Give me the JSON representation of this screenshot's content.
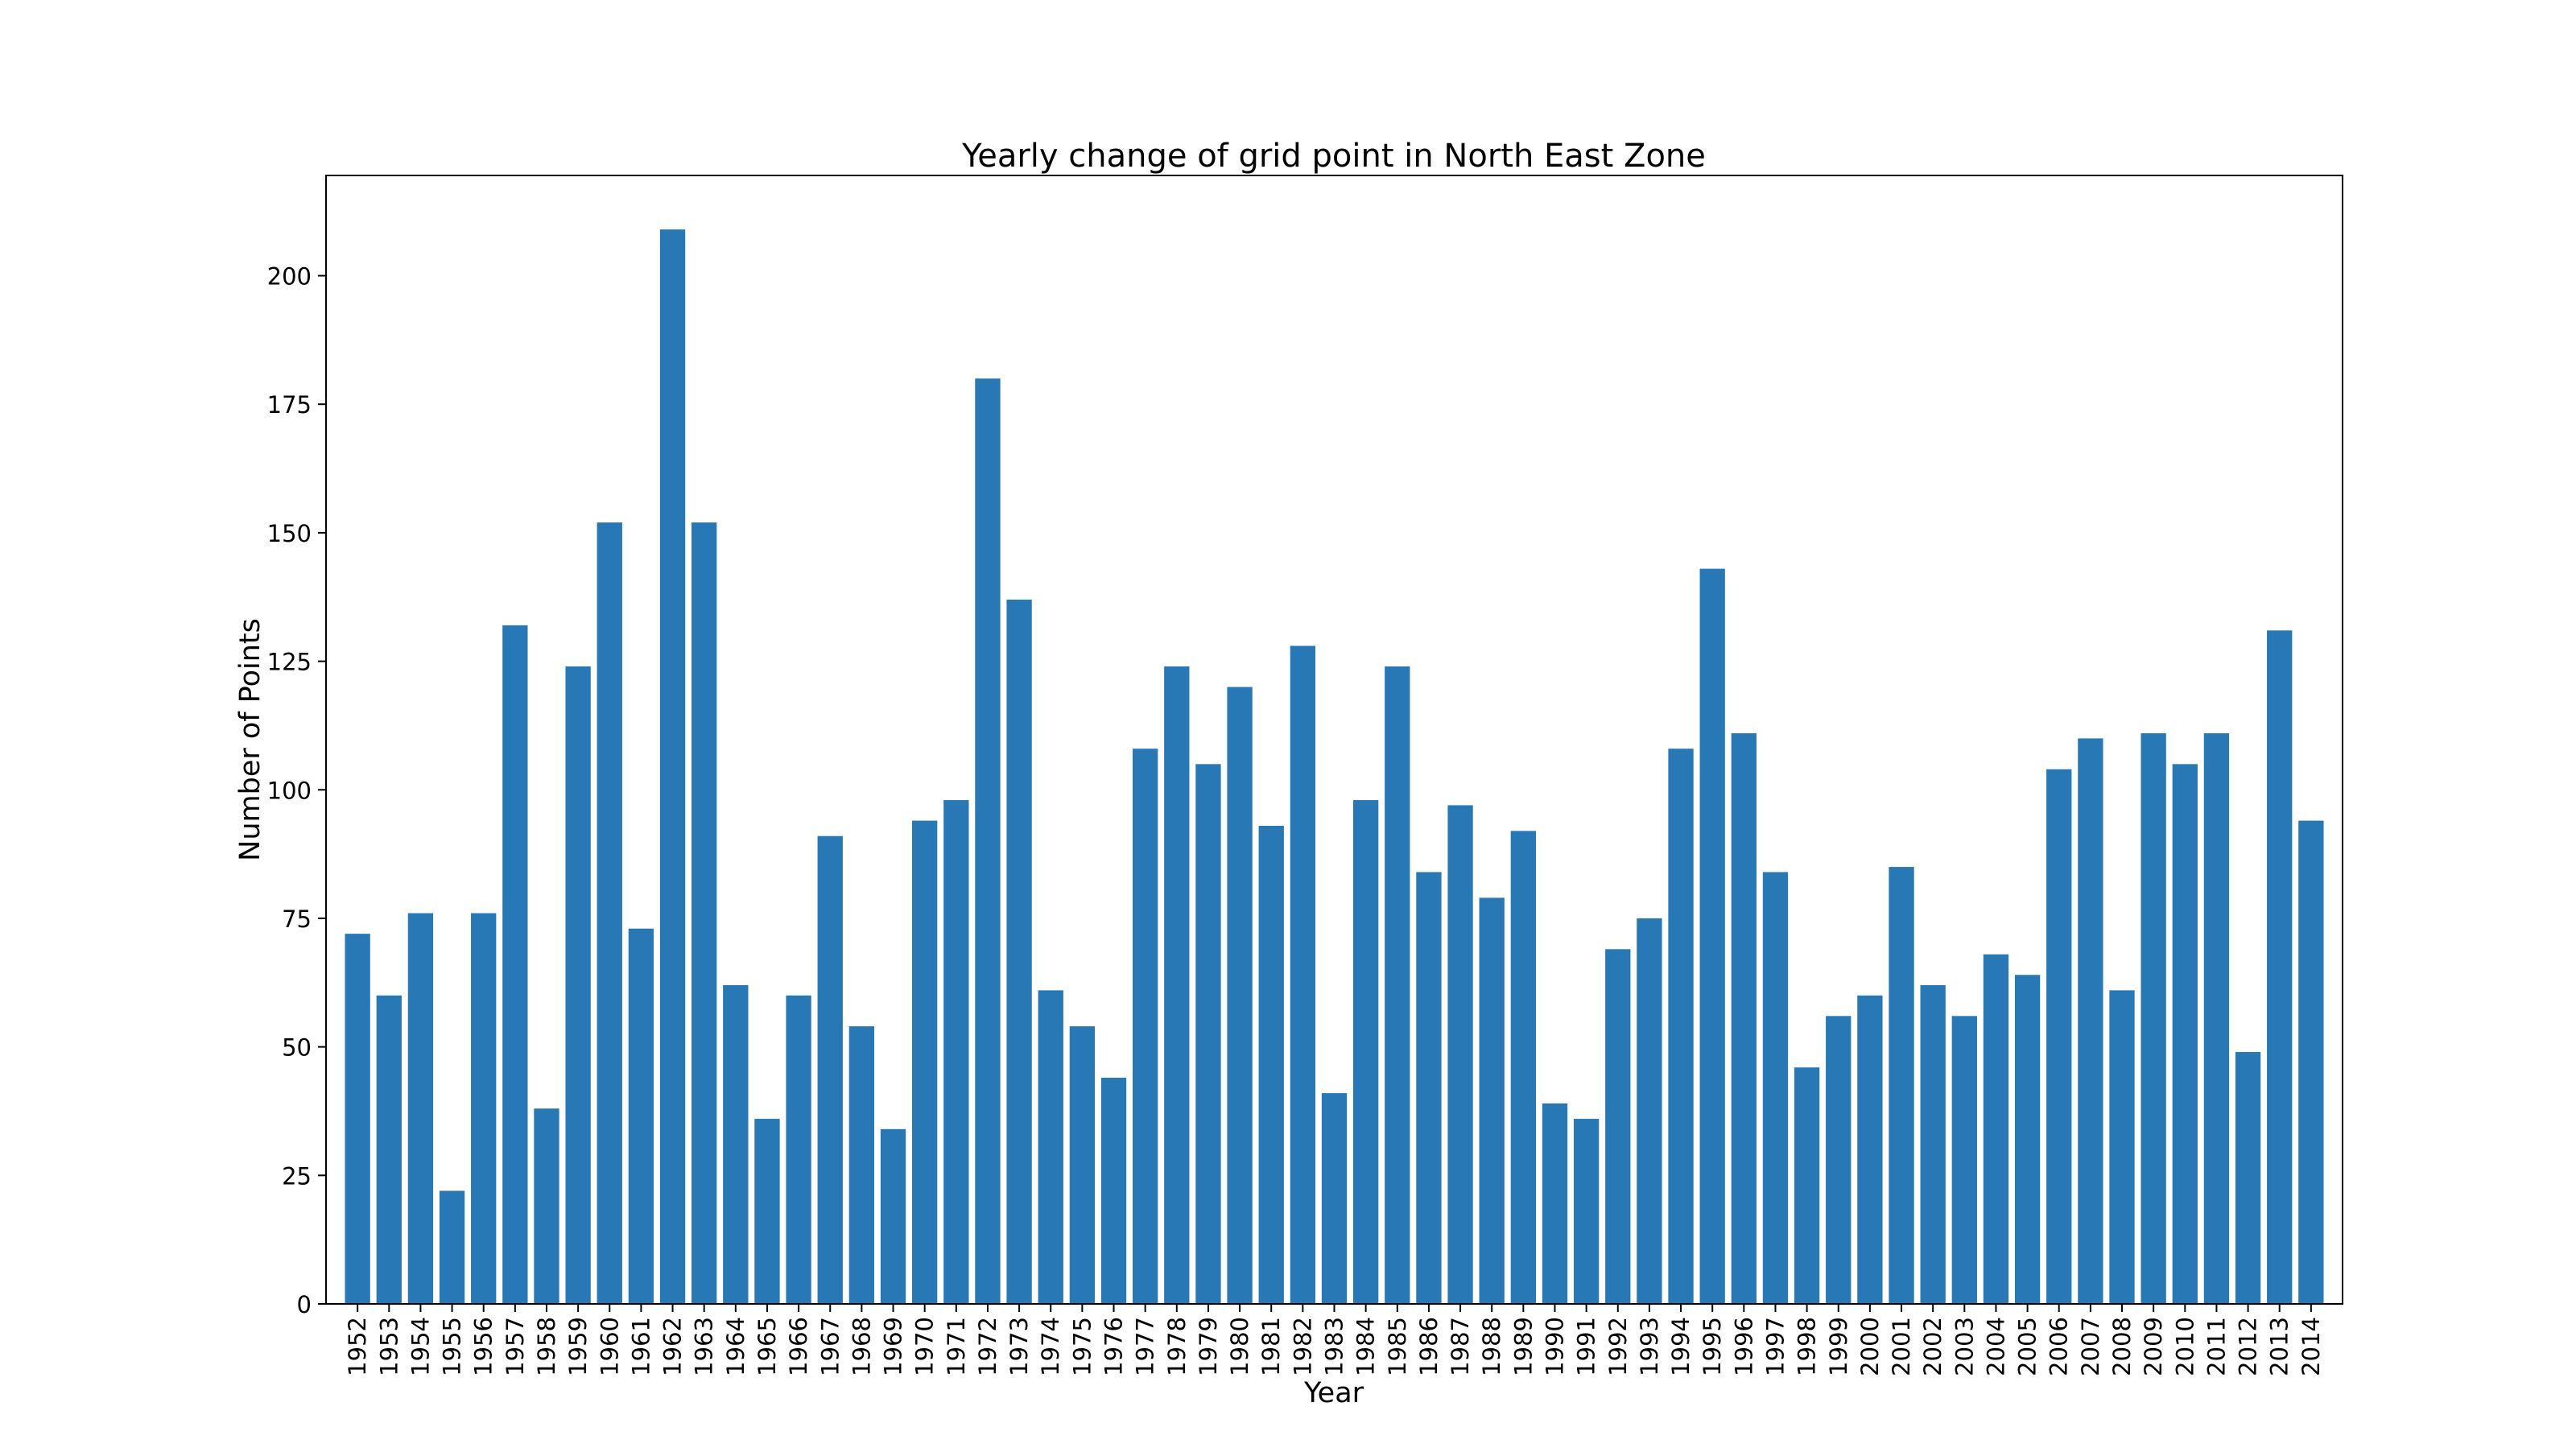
{
  "chart_data": {
    "type": "bar",
    "title": "Yearly change of grid point in North East Zone",
    "xlabel": "Year",
    "ylabel": "Number of Points",
    "categories": [
      "1952",
      "1953",
      "1954",
      "1955",
      "1956",
      "1957",
      "1958",
      "1959",
      "1960",
      "1961",
      "1962",
      "1963",
      "1964",
      "1965",
      "1966",
      "1967",
      "1968",
      "1969",
      "1970",
      "1971",
      "1972",
      "1973",
      "1974",
      "1975",
      "1976",
      "1977",
      "1978",
      "1979",
      "1980",
      "1981",
      "1982",
      "1983",
      "1984",
      "1985",
      "1986",
      "1987",
      "1988",
      "1989",
      "1990",
      "1991",
      "1992",
      "1993",
      "1994",
      "1995",
      "1996",
      "1997",
      "1998",
      "1999",
      "2000",
      "2001",
      "2002",
      "2003",
      "2004",
      "2005",
      "2006",
      "2007",
      "2008",
      "2009",
      "2010",
      "2011",
      "2012",
      "2013",
      "2014"
    ],
    "values": [
      72,
      60,
      76,
      22,
      76,
      132,
      38,
      124,
      152,
      73,
      209,
      152,
      62,
      36,
      60,
      91,
      54,
      34,
      94,
      98,
      180,
      137,
      61,
      54,
      44,
      108,
      124,
      105,
      120,
      93,
      128,
      41,
      98,
      124,
      84,
      97,
      79,
      92,
      39,
      36,
      69,
      75,
      108,
      143,
      111,
      84,
      46,
      56,
      60,
      85,
      62,
      56,
      68,
      64,
      104,
      110,
      61,
      111,
      105,
      111,
      49,
      131,
      94
    ],
    "ylim": [
      0,
      219.5
    ],
    "yticks": [
      0,
      25,
      50,
      75,
      100,
      125,
      150,
      175,
      200
    ],
    "bar_color": "#2878b5",
    "grid": false,
    "legend": "none"
  }
}
